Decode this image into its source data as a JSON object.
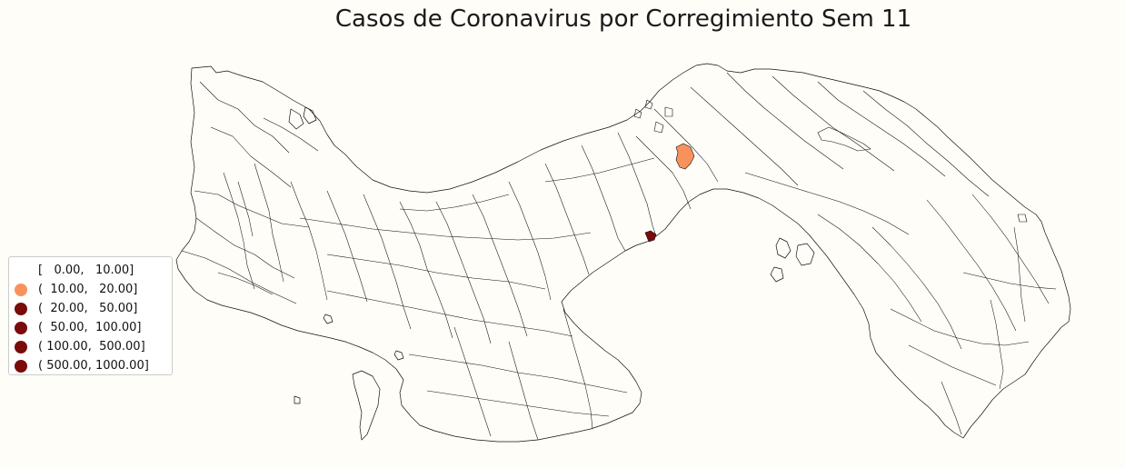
{
  "title": "Casos de Coronavirus por Corregimiento Sem 11",
  "legend": {
    "items": [
      {
        "label": "[   0.00,   10.00]",
        "color": "none"
      },
      {
        "label": "(  10.00,   20.00]",
        "color": "#f8925d"
      },
      {
        "label": "(  20.00,   50.00]",
        "color": "#7a0b0b"
      },
      {
        "label": "(  50.00,  100.00]",
        "color": "#7a0b0b"
      },
      {
        "label": "( 100.00,  500.00]",
        "color": "#7a0b0b"
      },
      {
        "label": "( 500.00, 1000.00]",
        "color": "#7a0b0b"
      }
    ]
  },
  "map": {
    "country": "Panama",
    "unit": "corregimiento",
    "highlighted": [
      {
        "class": "(  10.00,   20.00]",
        "color": "#f8925d"
      },
      {
        "class": "dark",
        "color": "#7a0b0b"
      }
    ]
  }
}
